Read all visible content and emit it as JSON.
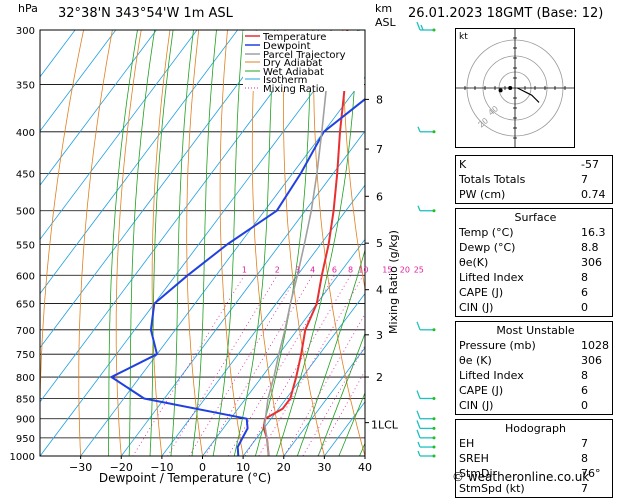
{
  "header": {
    "pressure_unit": "hPa",
    "location": "32°38'N 343°54'W 1m ASL",
    "km_unit": "km",
    "asl_unit": "ASL",
    "datetime": "26.01.2023 18GMT (Base: 12)"
  },
  "chart_data": {
    "type": "line",
    "xlabel": "Dewpoint / Temperature (°C)",
    "y2label": "Mixing Ratio (g/kg)",
    "xlim": [
      -40,
      40
    ],
    "ylim": [
      1000,
      300
    ],
    "y_scale": "log",
    "x_ticks": [
      "−30",
      "−20",
      "−10",
      "0",
      "10",
      "20",
      "30",
      "40"
    ],
    "x_tick_values": [
      -30,
      -20,
      -10,
      0,
      10,
      20,
      30,
      40
    ],
    "pressure_levels": [
      300,
      350,
      400,
      450,
      500,
      550,
      600,
      650,
      700,
      750,
      800,
      850,
      900,
      950,
      1000
    ],
    "km_ticks": [
      {
        "km": 8,
        "p": 365
      },
      {
        "km": 7,
        "p": 420
      },
      {
        "km": 6,
        "p": 480
      },
      {
        "km": 5,
        "p": 548
      },
      {
        "km": 4,
        "p": 625
      },
      {
        "km": 3,
        "p": 710
      },
      {
        "km": 2,
        "p": 800
      },
      {
        "km": 1,
        "p": 910
      }
    ],
    "lcl_label": "1LCL",
    "lcl_pressure": 915,
    "mixing_ratio_labels": [
      "1",
      "2",
      "3",
      "4",
      "6",
      "8",
      "10",
      "15",
      "20",
      "25"
    ],
    "mixing_ratio_values": [
      1,
      2,
      3,
      4,
      6,
      8,
      10,
      15,
      20,
      25
    ],
    "legend": [
      "Temperature",
      "Dewpoint",
      "Parcel Trajectory",
      "Dry Adiabat",
      "Wet Adiabat",
      "Isotherm",
      "Mixing Ratio"
    ],
    "legend_position": "top-right",
    "series": [
      {
        "name": "Temperature",
        "color": "#e83030",
        "points": [
          [
            1000,
            16.3
          ],
          [
            950,
            12.5
          ],
          [
            925,
            10.0
          ],
          [
            900,
            8.5
          ],
          [
            875,
            11.0
          ],
          [
            850,
            11.0
          ],
          [
            800,
            8.5
          ],
          [
            750,
            5.5
          ],
          [
            700,
            2.0
          ],
          [
            650,
            0.0
          ],
          [
            600,
            -4.0
          ],
          [
            550,
            -8.0
          ],
          [
            500,
            -13.0
          ],
          [
            450,
            -19.0
          ],
          [
            400,
            -26.0
          ],
          [
            350,
            -33.5
          ],
          [
            300,
            -43.0
          ]
        ]
      },
      {
        "name": "Dewpoint",
        "color": "#2040e0",
        "points": [
          [
            1000,
            8.8
          ],
          [
            975,
            7.0
          ],
          [
            950,
            6.5
          ],
          [
            925,
            6.0
          ],
          [
            900,
            4.0
          ],
          [
            850,
            -25.0
          ],
          [
            800,
            -37.0
          ],
          [
            750,
            -30.0
          ],
          [
            700,
            -36.0
          ],
          [
            650,
            -40.0
          ],
          [
            600,
            -37.0
          ],
          [
            550,
            -33.0
          ],
          [
            500,
            -27.0
          ],
          [
            450,
            -28.0
          ],
          [
            400,
            -30.0
          ],
          [
            350,
            -24.0
          ],
          [
            300,
            -28.0
          ]
        ]
      },
      {
        "name": "Parcel Trajectory",
        "color": "#a0a0a0",
        "points": [
          [
            1000,
            16.3
          ],
          [
            950,
            12.5
          ],
          [
            915,
            9.5
          ],
          [
            850,
            5.5
          ],
          [
            800,
            3.0
          ],
          [
            750,
            0.0
          ],
          [
            700,
            -3.0
          ],
          [
            650,
            -6.5
          ],
          [
            600,
            -10.0
          ],
          [
            550,
            -14.0
          ],
          [
            500,
            -18.5
          ],
          [
            450,
            -24.0
          ],
          [
            400,
            -30.5
          ],
          [
            350,
            -38.0
          ],
          [
            300,
            -47.0
          ]
        ]
      }
    ],
    "line_colors": {
      "dry_adiabat": "#e08020",
      "wet_adiabat": "#20a020",
      "isotherm": "#20a0e0",
      "mixing_ratio": "#e020a0"
    },
    "wind_barbs": [
      {
        "p": 1000,
        "speed_kt": 5
      },
      {
        "p": 975,
        "speed_kt": 5
      },
      {
        "p": 950,
        "speed_kt": 10
      },
      {
        "p": 925,
        "speed_kt": 10
      },
      {
        "p": 900,
        "speed_kt": 10
      },
      {
        "p": 850,
        "speed_kt": 10
      },
      {
        "p": 700,
        "speed_kt": 10
      },
      {
        "p": 500,
        "speed_kt": 5
      },
      {
        "p": 400,
        "speed_kt": 5
      },
      {
        "p": 300,
        "speed_kt": 15
      }
    ],
    "wind_barb_color": "#20c0c0"
  },
  "hodograph": {
    "unit_label": "kt",
    "ring_labels": [
      "20",
      "40"
    ],
    "points_uv": [
      [
        -1,
        0
      ],
      [
        -3,
        -1
      ],
      [
        -5,
        -2
      ],
      [
        -7,
        -3
      ],
      [
        -9,
        -5
      ],
      [
        -10,
        -6
      ]
    ],
    "marker_a_uv": [
      -6,
      -1
    ],
    "marker_b_uv": [
      -2,
      0
    ]
  },
  "stats": {
    "general": [
      {
        "label": "K",
        "value": "-57"
      },
      {
        "label": "Totals Totals",
        "value": "7"
      },
      {
        "label": "PW (cm)",
        "value": "0.74"
      }
    ],
    "surface": {
      "title": "Surface",
      "rows": [
        {
          "label": "Temp (°C)",
          "value": "16.3"
        },
        {
          "label": "Dewp (°C)",
          "value": "8.8"
        },
        {
          "label": "θe(K)",
          "value": "306"
        },
        {
          "label": "Lifted Index",
          "value": "8"
        },
        {
          "label": "CAPE (J)",
          "value": "6"
        },
        {
          "label": "CIN (J)",
          "value": "0"
        }
      ]
    },
    "most_unstable": {
      "title": "Most Unstable",
      "rows": [
        {
          "label": "Pressure (mb)",
          "value": "1028"
        },
        {
          "label": "θe (K)",
          "value": "306"
        },
        {
          "label": "Lifted Index",
          "value": "8"
        },
        {
          "label": "CAPE (J)",
          "value": "6"
        },
        {
          "label": "CIN (J)",
          "value": "0"
        }
      ]
    },
    "hodograph": {
      "title": "Hodograph",
      "rows": [
        {
          "label": "EH",
          "value": "7"
        },
        {
          "label": "SREH",
          "value": "8"
        },
        {
          "label": "StmDir",
          "value": "76°"
        },
        {
          "label": "StmSpd (kt)",
          "value": "7"
        }
      ]
    }
  },
  "footer": {
    "copyright": "© weatheronline.co.uk"
  }
}
